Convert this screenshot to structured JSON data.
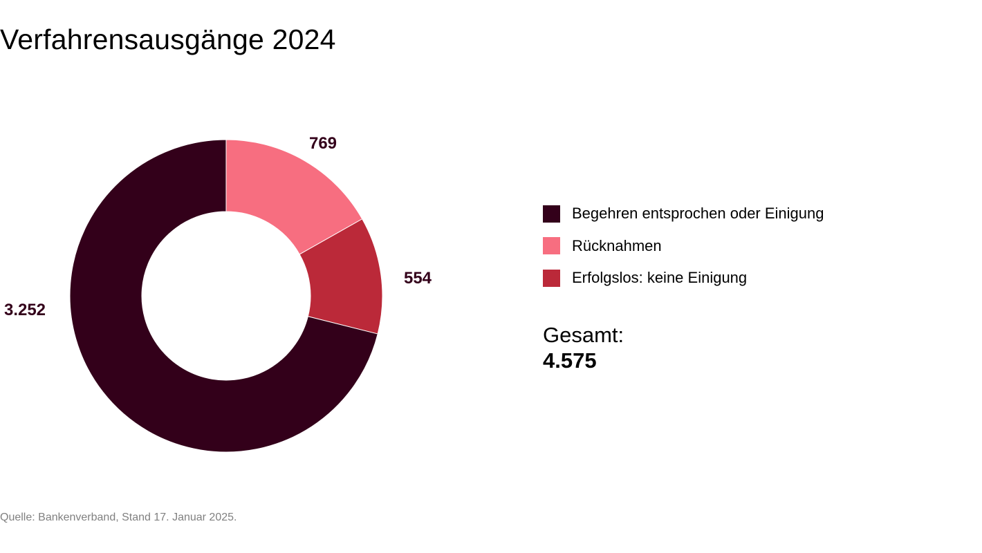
{
  "chart_data": {
    "type": "pie",
    "variant": "donut",
    "title": "Verfahrensausgänge 2024",
    "categories": [
      "Rücknahmen",
      "Erfolgslos: keine Einigung",
      "Begehren entsprochen oder Einigung"
    ],
    "values": [
      769,
      554,
      3252
    ],
    "data_labels": [
      "769",
      "554",
      "3.252"
    ],
    "colors": [
      "#F76E80",
      "#BB2939",
      "#33001A"
    ],
    "legend": {
      "placement": "right",
      "items": [
        {
          "label": "Begehren entsprochen oder Einigung",
          "color": "#33001A"
        },
        {
          "label": "Rücknahmen",
          "color": "#F76E80"
        },
        {
          "label": "Erfolgslos: keine Einigung",
          "color": "#BB2939"
        }
      ]
    },
    "total_label": "Gesamt:",
    "total_value": "4.575"
  },
  "source": "Quelle: Bankenverband, Stand 17. Januar 2025."
}
